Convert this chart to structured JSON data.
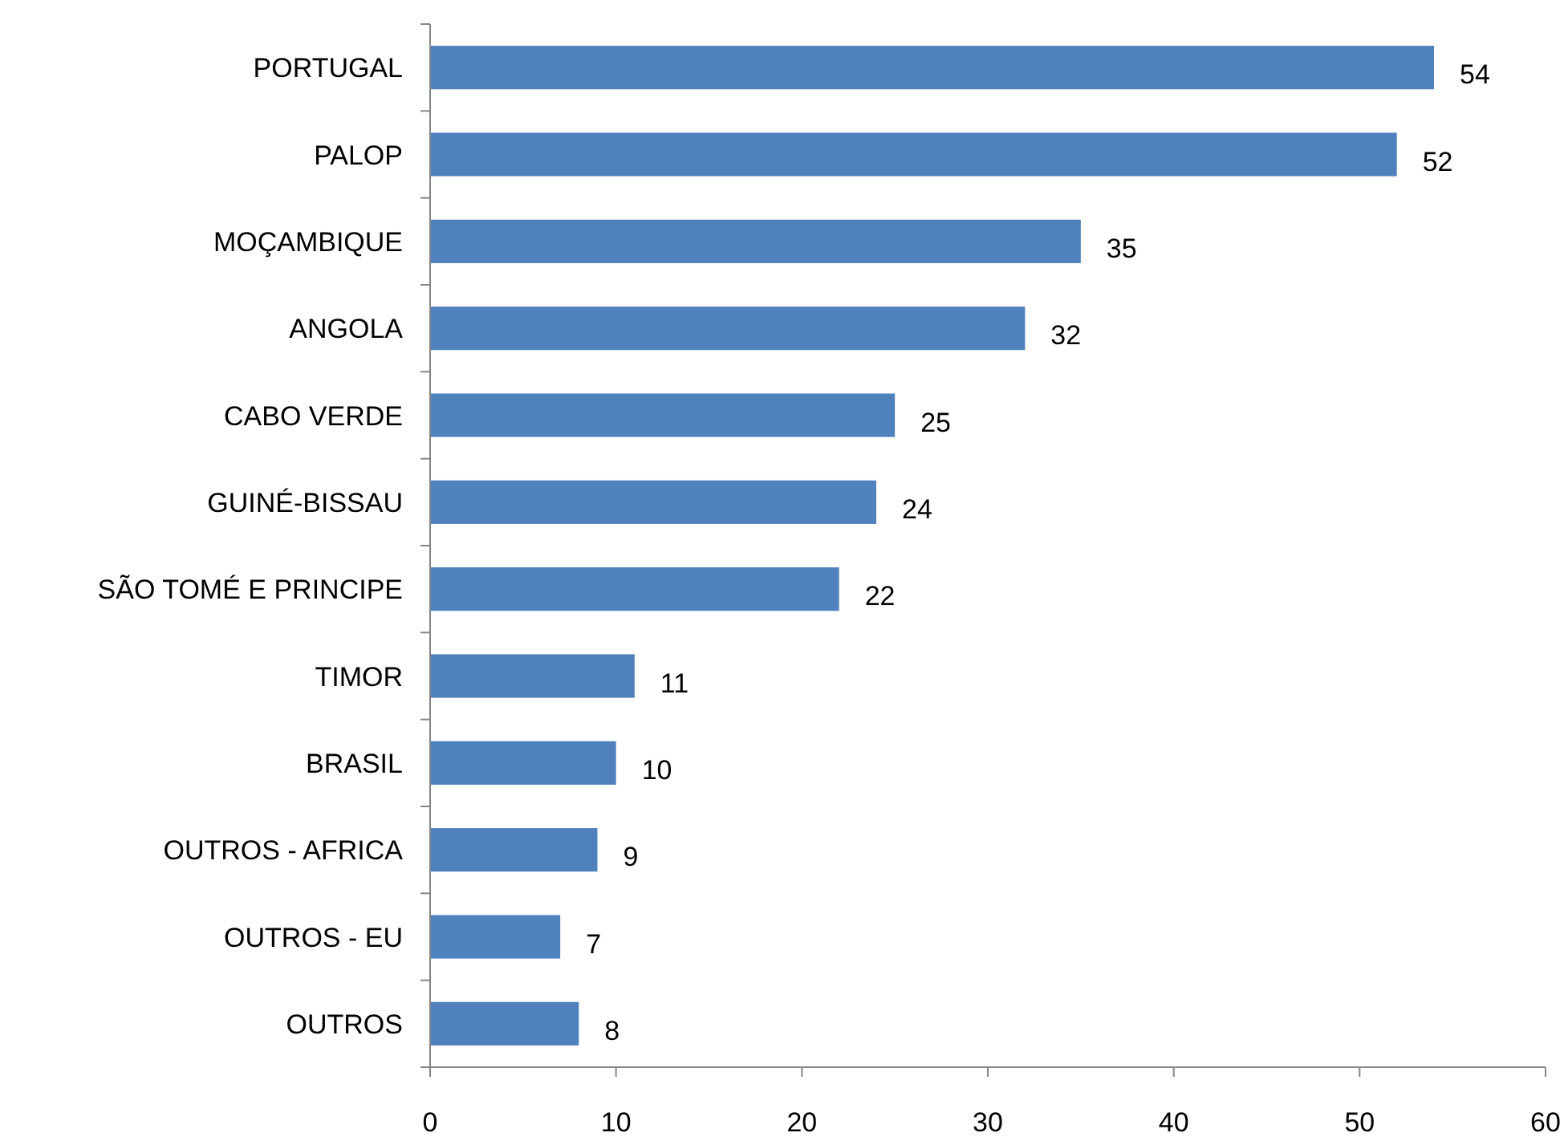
{
  "chart_data": {
    "type": "bar",
    "orientation": "horizontal",
    "categories": [
      "PORTUGAL",
      "PALOP",
      "MOÇAMBIQUE",
      "ANGOLA",
      "CABO VERDE",
      "GUINÉ-BISSAU",
      "SÃO TOMÉ E PRINCIPE",
      "TIMOR",
      "BRASIL",
      "OUTROS - AFRICA",
      "OUTROS - EU",
      "OUTROS"
    ],
    "values": [
      54,
      52,
      35,
      32,
      25,
      24,
      22,
      11,
      10,
      9,
      7,
      8
    ],
    "color": "#4f81bd",
    "xlim": [
      0,
      60
    ],
    "xticks": [
      0,
      10,
      20,
      30,
      40,
      50,
      60
    ],
    "data_labels": true,
    "grid": false
  }
}
